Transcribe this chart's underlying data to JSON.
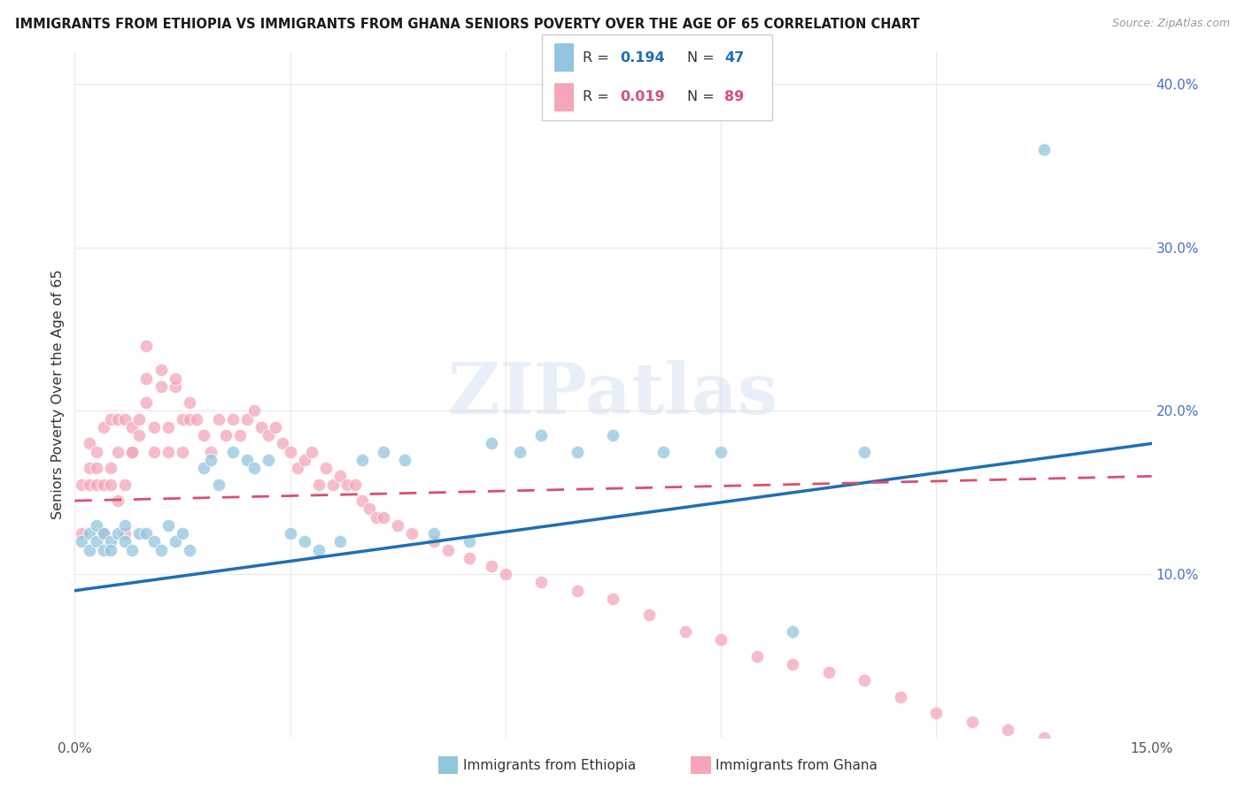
{
  "title": "IMMIGRANTS FROM ETHIOPIA VS IMMIGRANTS FROM GHANA SENIORS POVERTY OVER THE AGE OF 65 CORRELATION CHART",
  "source": "Source: ZipAtlas.com",
  "ylabel": "Seniors Poverty Over the Age of 65",
  "xlim": [
    0.0,
    0.15
  ],
  "ylim": [
    0.0,
    0.42
  ],
  "ethiopia_color": "#92c5de",
  "ghana_color": "#f4a6b8",
  "ethiopia_line_color": "#1f6eb5",
  "ghana_line_color": "#d94f70",
  "R_ethiopia": 0.194,
  "N_ethiopia": 47,
  "R_ghana": 0.019,
  "N_ghana": 89,
  "watermark": "ZIPatlas",
  "label_ethiopia": "Immigrants from Ethiopia",
  "label_ghana": "Immigrants from Ghana",
  "ethiopia_x": [
    0.001,
    0.002,
    0.002,
    0.003,
    0.003,
    0.004,
    0.004,
    0.005,
    0.005,
    0.006,
    0.007,
    0.007,
    0.008,
    0.009,
    0.01,
    0.011,
    0.012,
    0.013,
    0.014,
    0.015,
    0.016,
    0.018,
    0.019,
    0.02,
    0.022,
    0.024,
    0.025,
    0.027,
    0.03,
    0.032,
    0.034,
    0.037,
    0.04,
    0.043,
    0.046,
    0.05,
    0.055,
    0.058,
    0.062,
    0.065,
    0.07,
    0.075,
    0.082,
    0.09,
    0.1,
    0.11,
    0.135
  ],
  "ethiopia_y": [
    0.12,
    0.115,
    0.125,
    0.13,
    0.12,
    0.115,
    0.125,
    0.12,
    0.115,
    0.125,
    0.13,
    0.12,
    0.115,
    0.125,
    0.125,
    0.12,
    0.115,
    0.13,
    0.12,
    0.125,
    0.115,
    0.165,
    0.17,
    0.155,
    0.175,
    0.17,
    0.165,
    0.17,
    0.125,
    0.12,
    0.115,
    0.12,
    0.17,
    0.175,
    0.17,
    0.125,
    0.12,
    0.18,
    0.175,
    0.185,
    0.175,
    0.185,
    0.175,
    0.175,
    0.065,
    0.175,
    0.36
  ],
  "ghana_x": [
    0.001,
    0.001,
    0.002,
    0.002,
    0.002,
    0.003,
    0.003,
    0.003,
    0.004,
    0.004,
    0.004,
    0.005,
    0.005,
    0.005,
    0.006,
    0.006,
    0.006,
    0.007,
    0.007,
    0.007,
    0.008,
    0.008,
    0.008,
    0.009,
    0.009,
    0.01,
    0.01,
    0.01,
    0.011,
    0.011,
    0.012,
    0.012,
    0.013,
    0.013,
    0.014,
    0.014,
    0.015,
    0.015,
    0.016,
    0.016,
    0.017,
    0.018,
    0.019,
    0.02,
    0.021,
    0.022,
    0.023,
    0.024,
    0.025,
    0.026,
    0.027,
    0.028,
    0.029,
    0.03,
    0.031,
    0.032,
    0.033,
    0.034,
    0.035,
    0.036,
    0.037,
    0.038,
    0.039,
    0.04,
    0.041,
    0.042,
    0.043,
    0.045,
    0.047,
    0.05,
    0.052,
    0.055,
    0.058,
    0.06,
    0.065,
    0.07,
    0.075,
    0.08,
    0.085,
    0.09,
    0.095,
    0.1,
    0.105,
    0.11,
    0.115,
    0.12,
    0.125,
    0.13,
    0.135
  ],
  "ghana_y": [
    0.155,
    0.125,
    0.155,
    0.165,
    0.18,
    0.155,
    0.165,
    0.175,
    0.155,
    0.19,
    0.125,
    0.155,
    0.165,
    0.195,
    0.145,
    0.175,
    0.195,
    0.155,
    0.195,
    0.125,
    0.175,
    0.19,
    0.175,
    0.185,
    0.195,
    0.205,
    0.24,
    0.22,
    0.175,
    0.19,
    0.215,
    0.225,
    0.19,
    0.175,
    0.215,
    0.22,
    0.195,
    0.175,
    0.195,
    0.205,
    0.195,
    0.185,
    0.175,
    0.195,
    0.185,
    0.195,
    0.185,
    0.195,
    0.2,
    0.19,
    0.185,
    0.19,
    0.18,
    0.175,
    0.165,
    0.17,
    0.175,
    0.155,
    0.165,
    0.155,
    0.16,
    0.155,
    0.155,
    0.145,
    0.14,
    0.135,
    0.135,
    0.13,
    0.125,
    0.12,
    0.115,
    0.11,
    0.105,
    0.1,
    0.095,
    0.09,
    0.085,
    0.075,
    0.065,
    0.06,
    0.05,
    0.045,
    0.04,
    0.035,
    0.025,
    0.015,
    0.01,
    0.005,
    0.0
  ]
}
